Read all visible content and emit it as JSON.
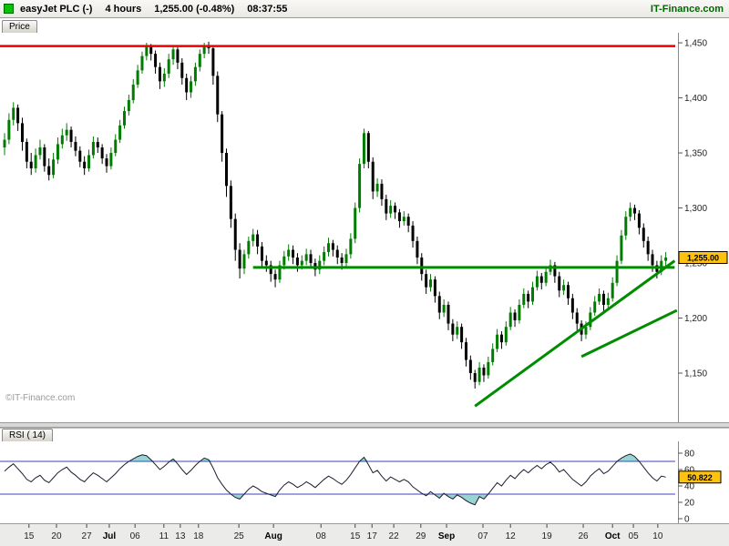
{
  "header": {
    "instrument": "easyJet PLC (-)",
    "timeframe": "4 hours",
    "quote": "1,255.00 (-0.48%)",
    "time": "08:37:55",
    "brand": "IT-Finance.com"
  },
  "panels": {
    "price_tab": "Price",
    "rsi_tab": "RSI ( 14)",
    "watermark": "©IT-Finance.com"
  },
  "colors": {
    "up": "#007c00",
    "down": "#000000",
    "resistance": "#ee0000",
    "trend": "#008c00",
    "badge": "#ffc20e",
    "rsi_line": "#1c1c30",
    "threshold": "#4040b8",
    "zone": "rgba(0,145,145,0.40)"
  },
  "chart_data": {
    "type": "candlestick",
    "instrument": "easyJet PLC",
    "timeframe": "4 hours",
    "price": {
      "ylim": [
        1112,
        1455
      ],
      "yticks": [
        {
          "v": 1450,
          "label": "1,450"
        },
        {
          "v": 1400,
          "label": "1,400"
        },
        {
          "v": 1350,
          "label": "1,350"
        },
        {
          "v": 1300,
          "label": "1,300"
        },
        {
          "v": 1250,
          "label": "1,250"
        },
        {
          "v": 1200,
          "label": "1,200"
        },
        {
          "v": 1150,
          "label": "1,150"
        }
      ],
      "last_price": 1255.0,
      "last_price_label": "1,255.00",
      "annotations": {
        "resistance": {
          "type": "hline",
          "price": 1447
        },
        "support": {
          "type": "segment",
          "price": 1246,
          "from_bar": 56,
          "to_bar": 151
        },
        "trendlines": [
          {
            "from": {
              "bar": 106,
              "price": 1120
            },
            "to": {
              "bar": 151,
              "price": 1252
            }
          },
          {
            "from": {
              "bar": 130,
              "price": 1165
            },
            "to": {
              "bar": 151.5,
              "price": 1207
            }
          }
        ]
      },
      "candles": [
        [
          1355,
          1368,
          1348,
          1362
        ],
        [
          1362,
          1386,
          1358,
          1380
        ],
        [
          1380,
          1396,
          1375,
          1391
        ],
        [
          1391,
          1394,
          1370,
          1377
        ],
        [
          1377,
          1382,
          1352,
          1360
        ],
        [
          1360,
          1363,
          1336,
          1342
        ],
        [
          1342,
          1350,
          1330,
          1336
        ],
        [
          1336,
          1354,
          1332,
          1348
        ],
        [
          1348,
          1362,
          1344,
          1355
        ],
        [
          1355,
          1358,
          1333,
          1338
        ],
        [
          1338,
          1345,
          1325,
          1330
        ],
        [
          1330,
          1350,
          1327,
          1344
        ],
        [
          1344,
          1364,
          1340,
          1358
        ],
        [
          1358,
          1372,
          1354,
          1366
        ],
        [
          1366,
          1377,
          1361,
          1371
        ],
        [
          1371,
          1374,
          1355,
          1360
        ],
        [
          1360,
          1365,
          1347,
          1352
        ],
        [
          1352,
          1356,
          1337,
          1342
        ],
        [
          1342,
          1347,
          1330,
          1336
        ],
        [
          1336,
          1353,
          1333,
          1348
        ],
        [
          1348,
          1365,
          1345,
          1360
        ],
        [
          1360,
          1364,
          1350,
          1355
        ],
        [
          1355,
          1358,
          1340,
          1345
        ],
        [
          1345,
          1349,
          1332,
          1338
        ],
        [
          1338,
          1355,
          1335,
          1350
        ],
        [
          1350,
          1367,
          1347,
          1362
        ],
        [
          1362,
          1380,
          1359,
          1375
        ],
        [
          1375,
          1392,
          1372,
          1388
        ],
        [
          1388,
          1403,
          1384,
          1398
        ],
        [
          1398,
          1417,
          1395,
          1412
        ],
        [
          1412,
          1430,
          1409,
          1425
        ],
        [
          1425,
          1442,
          1422,
          1438
        ],
        [
          1438,
          1450,
          1434,
          1447
        ],
        [
          1447,
          1449,
          1434,
          1440
        ],
        [
          1440,
          1443,
          1422,
          1428
        ],
        [
          1428,
          1432,
          1408,
          1415
        ],
        [
          1415,
          1427,
          1410,
          1422
        ],
        [
          1422,
          1440,
          1418,
          1435
        ],
        [
          1435,
          1448,
          1430,
          1444
        ],
        [
          1444,
          1446,
          1426,
          1432
        ],
        [
          1432,
          1436,
          1412,
          1418
        ],
        [
          1418,
          1422,
          1398,
          1405
        ],
        [
          1405,
          1420,
          1400,
          1415
        ],
        [
          1415,
          1432,
          1411,
          1428
        ],
        [
          1428,
          1444,
          1424,
          1440
        ],
        [
          1440,
          1450,
          1436,
          1448
        ],
        [
          1448,
          1451,
          1440,
          1445
        ],
        [
          1445,
          1447,
          1412,
          1420
        ],
        [
          1420,
          1424,
          1378,
          1385
        ],
        [
          1385,
          1388,
          1342,
          1350
        ],
        [
          1350,
          1354,
          1310,
          1320
        ],
        [
          1320,
          1325,
          1282,
          1290
        ],
        [
          1290,
          1295,
          1252,
          1262
        ],
        [
          1262,
          1268,
          1236,
          1245
        ],
        [
          1245,
          1262,
          1240,
          1258
        ],
        [
          1258,
          1274,
          1254,
          1270
        ],
        [
          1270,
          1281,
          1265,
          1276
        ],
        [
          1276,
          1280,
          1258,
          1265
        ],
        [
          1265,
          1269,
          1246,
          1252
        ],
        [
          1252,
          1257,
          1242,
          1248
        ],
        [
          1248,
          1252,
          1233,
          1240
        ],
        [
          1240,
          1244,
          1228,
          1235
        ],
        [
          1235,
          1252,
          1232,
          1248
        ],
        [
          1248,
          1261,
          1244,
          1256
        ],
        [
          1256,
          1267,
          1252,
          1262
        ],
        [
          1262,
          1266,
          1249,
          1255
        ],
        [
          1255,
          1259,
          1242,
          1248
        ],
        [
          1248,
          1257,
          1244,
          1252
        ],
        [
          1252,
          1263,
          1248,
          1258
        ],
        [
          1258,
          1262,
          1245,
          1250
        ],
        [
          1250,
          1254,
          1238,
          1244
        ],
        [
          1244,
          1257,
          1240,
          1252
        ],
        [
          1252,
          1265,
          1248,
          1260
        ],
        [
          1260,
          1273,
          1256,
          1268
        ],
        [
          1268,
          1271,
          1256,
          1262
        ],
        [
          1262,
          1266,
          1249,
          1255
        ],
        [
          1255,
          1259,
          1244,
          1250
        ],
        [
          1250,
          1263,
          1246,
          1258
        ],
        [
          1258,
          1277,
          1254,
          1272
        ],
        [
          1272,
          1305,
          1268,
          1300
        ],
        [
          1300,
          1345,
          1296,
          1340
        ],
        [
          1340,
          1372,
          1336,
          1368
        ],
        [
          1368,
          1370,
          1336,
          1342
        ],
        [
          1342,
          1346,
          1308,
          1315
        ],
        [
          1315,
          1327,
          1310,
          1322
        ],
        [
          1322,
          1326,
          1302,
          1308
        ],
        [
          1308,
          1312,
          1289,
          1295
        ],
        [
          1295,
          1307,
          1291,
          1302
        ],
        [
          1302,
          1305,
          1290,
          1296
        ],
        [
          1296,
          1299,
          1282,
          1288
        ],
        [
          1288,
          1297,
          1284,
          1292
        ],
        [
          1292,
          1295,
          1278,
          1284
        ],
        [
          1284,
          1288,
          1264,
          1270
        ],
        [
          1270,
          1274,
          1249,
          1255
        ],
        [
          1255,
          1259,
          1234,
          1240
        ],
        [
          1240,
          1244,
          1222,
          1228
        ],
        [
          1228,
          1240,
          1224,
          1235
        ],
        [
          1235,
          1238,
          1214,
          1220
        ],
        [
          1220,
          1224,
          1199,
          1205
        ],
        [
          1205,
          1217,
          1201,
          1212
        ],
        [
          1212,
          1215,
          1189,
          1195
        ],
        [
          1195,
          1199,
          1179,
          1185
        ],
        [
          1185,
          1197,
          1181,
          1192
        ],
        [
          1192,
          1195,
          1172,
          1178
        ],
        [
          1178,
          1182,
          1156,
          1162
        ],
        [
          1162,
          1166,
          1144,
          1150
        ],
        [
          1150,
          1153,
          1136,
          1142
        ],
        [
          1142,
          1160,
          1139,
          1155
        ],
        [
          1155,
          1158,
          1142,
          1148
        ],
        [
          1148,
          1165,
          1145,
          1160
        ],
        [
          1160,
          1177,
          1157,
          1172
        ],
        [
          1172,
          1190,
          1169,
          1185
        ],
        [
          1185,
          1188,
          1172,
          1178
        ],
        [
          1178,
          1197,
          1175,
          1192
        ],
        [
          1192,
          1210,
          1189,
          1205
        ],
        [
          1205,
          1208,
          1192,
          1198
        ],
        [
          1198,
          1217,
          1195,
          1212
        ],
        [
          1212,
          1227,
          1209,
          1222
        ],
        [
          1222,
          1225,
          1209,
          1215
        ],
        [
          1215,
          1233,
          1212,
          1228
        ],
        [
          1228,
          1243,
          1225,
          1238
        ],
        [
          1238,
          1241,
          1226,
          1232
        ],
        [
          1232,
          1247,
          1229,
          1242
        ],
        [
          1242,
          1253,
          1239,
          1248
        ],
        [
          1248,
          1251,
          1232,
          1238
        ],
        [
          1238,
          1242,
          1219,
          1225
        ],
        [
          1225,
          1235,
          1221,
          1230
        ],
        [
          1230,
          1233,
          1212,
          1218
        ],
        [
          1218,
          1222,
          1199,
          1205
        ],
        [
          1205,
          1209,
          1189,
          1195
        ],
        [
          1195,
          1198,
          1179,
          1185
        ],
        [
          1185,
          1197,
          1181,
          1192
        ],
        [
          1192,
          1210,
          1189,
          1205
        ],
        [
          1205,
          1220,
          1202,
          1215
        ],
        [
          1215,
          1227,
          1212,
          1222
        ],
        [
          1222,
          1225,
          1206,
          1212
        ],
        [
          1212,
          1223,
          1208,
          1218
        ],
        [
          1218,
          1237,
          1215,
          1232
        ],
        [
          1232,
          1257,
          1229,
          1252
        ],
        [
          1252,
          1280,
          1249,
          1275
        ],
        [
          1275,
          1297,
          1271,
          1292
        ],
        [
          1292,
          1305,
          1288,
          1300
        ],
        [
          1300,
          1303,
          1289,
          1295
        ],
        [
          1295,
          1298,
          1276,
          1282
        ],
        [
          1282,
          1286,
          1264,
          1270
        ],
        [
          1270,
          1274,
          1252,
          1258
        ],
        [
          1258,
          1262,
          1242,
          1248
        ],
        [
          1248,
          1252,
          1236,
          1242
        ],
        [
          1242,
          1257,
          1239,
          1252
        ],
        [
          1252,
          1260,
          1246,
          1255
        ]
      ]
    },
    "rsi": {
      "period": 14,
      "overbought": 70,
      "oversold": 30,
      "last": 50.822,
      "last_label": "50.822",
      "yticks": [
        {
          "v": 80,
          "label": "80"
        },
        {
          "v": 60,
          "label": "60"
        },
        {
          "v": 40,
          "label": "40"
        },
        {
          "v": 20,
          "label": "20"
        },
        {
          "v": 0,
          "label": "0"
        }
      ],
      "values": [
        58,
        63,
        67,
        61,
        55,
        48,
        45,
        50,
        53,
        47,
        44,
        50,
        56,
        60,
        63,
        57,
        53,
        48,
        45,
        51,
        56,
        53,
        49,
        45,
        50,
        55,
        61,
        66,
        70,
        73,
        76,
        78,
        77,
        72,
        66,
        60,
        64,
        69,
        73,
        67,
        60,
        54,
        59,
        65,
        70,
        74,
        72,
        62,
        50,
        42,
        35,
        30,
        26,
        24,
        30,
        36,
        40,
        37,
        33,
        31,
        29,
        27,
        35,
        41,
        45,
        42,
        38,
        41,
        45,
        42,
        38,
        43,
        48,
        52,
        49,
        45,
        42,
        47,
        54,
        62,
        70,
        75,
        66,
        56,
        59,
        52,
        46,
        51,
        48,
        45,
        48,
        45,
        39,
        35,
        31,
        28,
        33,
        29,
        25,
        31,
        27,
        24,
        29,
        26,
        22,
        19,
        17,
        27,
        24,
        30,
        37,
        44,
        40,
        47,
        53,
        49,
        55,
        60,
        56,
        61,
        65,
        61,
        66,
        69,
        64,
        57,
        60,
        54,
        48,
        44,
        40,
        45,
        52,
        57,
        61,
        55,
        58,
        64,
        70,
        74,
        77,
        79,
        76,
        70,
        63,
        56,
        50,
        46,
        52,
        50.8
      ]
    },
    "xticks": [
      {
        "label": "15",
        "bar": 5.5
      },
      {
        "label": "20",
        "bar": 11.7
      },
      {
        "label": "27",
        "bar": 18.5
      },
      {
        "label": "Jul",
        "bar": 23.6,
        "month": true
      },
      {
        "label": "06",
        "bar": 29.4
      },
      {
        "label": "11",
        "bar": 35.9
      },
      {
        "label": "13",
        "bar": 39.6
      },
      {
        "label": "18",
        "bar": 43.7
      },
      {
        "label": "25",
        "bar": 52.8
      },
      {
        "label": "Aug",
        "bar": 60.6,
        "month": true
      },
      {
        "label": "08",
        "bar": 71.3
      },
      {
        "label": "15",
        "bar": 79
      },
      {
        "label": "17",
        "bar": 82.8
      },
      {
        "label": "22",
        "bar": 87.7
      },
      {
        "label": "29",
        "bar": 93.8
      },
      {
        "label": "Sep",
        "bar": 99.6,
        "month": true
      },
      {
        "label": "07",
        "bar": 107.8
      },
      {
        "label": "12",
        "bar": 114
      },
      {
        "label": "19",
        "bar": 122.2
      },
      {
        "label": "26",
        "bar": 130.4
      },
      {
        "label": "Oct",
        "bar": 137,
        "month": true
      },
      {
        "label": "05",
        "bar": 141.7
      },
      {
        "label": "10",
        "bar": 147.2
      }
    ]
  }
}
